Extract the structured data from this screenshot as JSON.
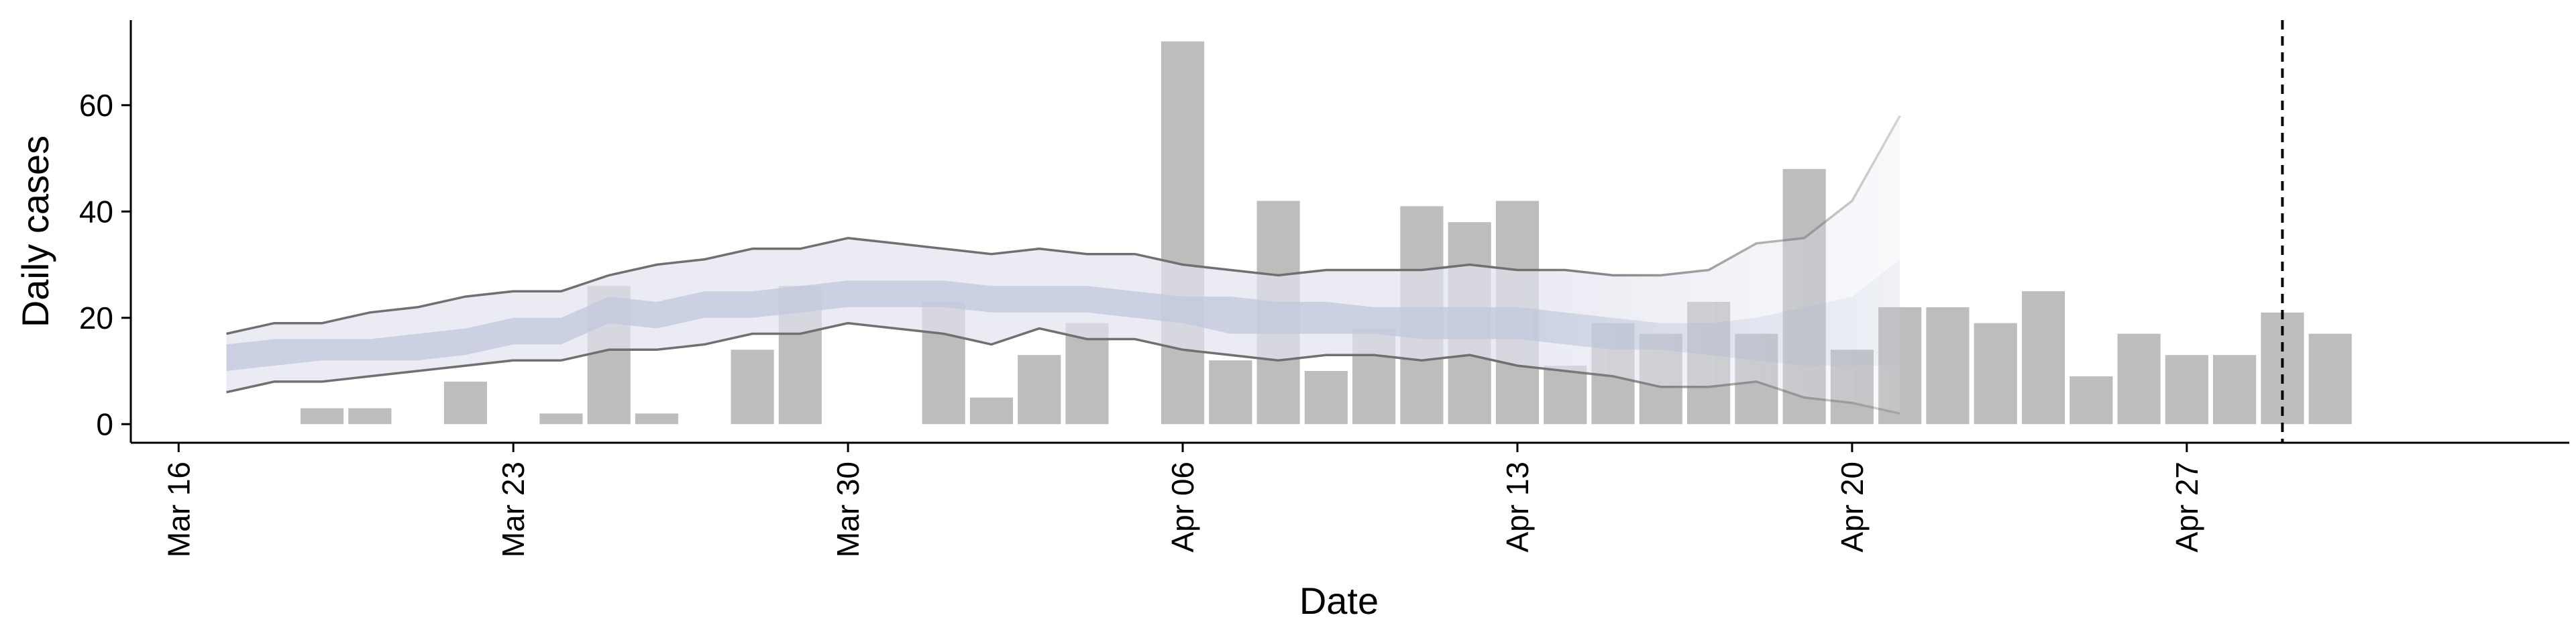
{
  "chart_data": {
    "type": "bar",
    "title": "",
    "xlabel": "Date",
    "ylabel": "Daily cases",
    "x_ticks": [
      {
        "date": "2020-03-16",
        "label": "Mar 16"
      },
      {
        "date": "2020-03-23",
        "label": "Mar 23"
      },
      {
        "date": "2020-03-30",
        "label": "Mar 30"
      },
      {
        "date": "2020-04-06",
        "label": "Apr 06"
      },
      {
        "date": "2020-04-13",
        "label": "Apr 13"
      },
      {
        "date": "2020-04-20",
        "label": "Apr 20"
      },
      {
        "date": "2020-04-27",
        "label": "Apr 27"
      }
    ],
    "y_ticks": [
      0,
      20,
      40,
      60
    ],
    "xlim": [
      "2020-03-15",
      "2020-05-05"
    ],
    "ylim": [
      -3.5,
      76
    ],
    "grid": false,
    "vertical_line": {
      "date": "2020-04-29",
      "style": "dashed"
    },
    "bars": {
      "name": "",
      "color": "#bdbdbd",
      "x": [
        "2020-03-19",
        "2020-03-20",
        "2020-03-22",
        "2020-03-24",
        "2020-03-25",
        "2020-03-26",
        "2020-03-28",
        "2020-03-29",
        "2020-04-01",
        "2020-04-02",
        "2020-04-03",
        "2020-04-04",
        "2020-04-06",
        "2020-04-07",
        "2020-04-08",
        "2020-04-09",
        "2020-04-10",
        "2020-04-11",
        "2020-04-12",
        "2020-04-13",
        "2020-04-14",
        "2020-04-15",
        "2020-04-16",
        "2020-04-17",
        "2020-04-18",
        "2020-04-19",
        "2020-04-20",
        "2020-04-21",
        "2020-04-22",
        "2020-04-23",
        "2020-04-24",
        "2020-04-25",
        "2020-04-26",
        "2020-04-27",
        "2020-04-28",
        "2020-04-29",
        "2020-04-30"
      ],
      "values": [
        3,
        3,
        8,
        2,
        26,
        2,
        14,
        26,
        23,
        5,
        13,
        19,
        72,
        12,
        42,
        10,
        18,
        41,
        38,
        42,
        11,
        19,
        17,
        23,
        17,
        48,
        14,
        22,
        22,
        19,
        25,
        9,
        17,
        13,
        13,
        21,
        17
      ]
    },
    "estimate": {
      "x": [
        "2020-03-17",
        "2020-03-18",
        "2020-03-19",
        "2020-03-20",
        "2020-03-21",
        "2020-03-22",
        "2020-03-23",
        "2020-03-24",
        "2020-03-25",
        "2020-03-26",
        "2020-03-27",
        "2020-03-28",
        "2020-03-29",
        "2020-03-30",
        "2020-03-31",
        "2020-04-01",
        "2020-04-02",
        "2020-04-03",
        "2020-04-04",
        "2020-04-05",
        "2020-04-06",
        "2020-04-07",
        "2020-04-08",
        "2020-04-09",
        "2020-04-10",
        "2020-04-11",
        "2020-04-12",
        "2020-04-13",
        "2020-04-14",
        "2020-04-15",
        "2020-04-16",
        "2020-04-17",
        "2020-04-18",
        "2020-04-19",
        "2020-04-20",
        "2020-04-21"
      ],
      "upper_90": [
        17,
        19,
        19,
        21,
        22,
        24,
        25,
        25,
        28,
        30,
        31,
        33,
        33,
        35,
        34,
        33,
        32,
        33,
        32,
        32,
        30,
        29,
        28,
        29,
        29,
        29,
        30,
        29,
        29,
        28,
        28,
        29,
        34,
        35,
        42,
        58
      ],
      "lower_90": [
        6,
        8,
        8,
        9,
        10,
        11,
        12,
        12,
        14,
        14,
        15,
        17,
        17,
        19,
        18,
        17,
        15,
        18,
        16,
        16,
        14,
        13,
        12,
        13,
        13,
        12,
        13,
        11,
        10,
        9,
        7,
        7,
        8,
        5,
        4,
        2
      ],
      "upper_50": [
        15,
        16,
        16,
        16,
        17,
        18,
        20,
        20,
        24,
        23,
        25,
        25,
        26,
        27,
        27,
        27,
        26,
        26,
        26,
        25,
        24,
        24,
        23,
        23,
        22,
        22,
        22,
        22,
        21,
        20,
        19,
        19,
        20,
        22,
        24,
        31
      ],
      "lower_50": [
        10,
        11,
        12,
        12,
        12,
        13,
        15,
        15,
        19,
        18,
        20,
        20,
        21,
        22,
        22,
        22,
        21,
        21,
        21,
        20,
        19,
        17,
        17,
        17,
        17,
        16,
        16,
        16,
        15,
        14,
        14,
        13,
        12,
        11,
        11,
        11
      ],
      "band_color_90": "#e1e3ee",
      "band_color_50": "#c0c8dc",
      "line_color": "#707070",
      "fade_from": "2020-04-13"
    }
  }
}
